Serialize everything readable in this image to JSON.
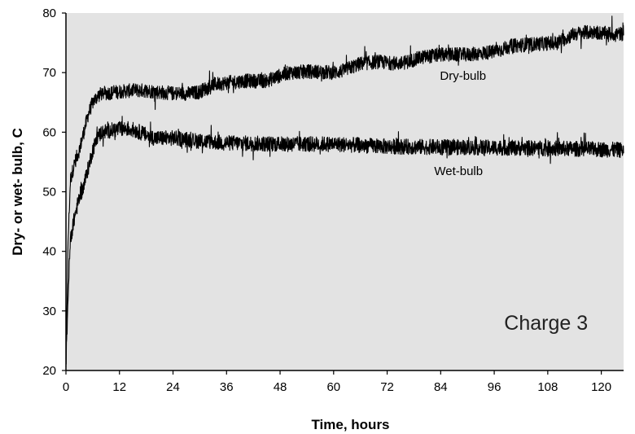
{
  "chart_data": {
    "type": "line",
    "title": "",
    "xlabel": "Time, hours",
    "ylabel": "Dry- or wet- bulb, C",
    "xlim": [
      0,
      125
    ],
    "ylim": [
      20,
      80
    ],
    "x_ticks": [
      0,
      12,
      24,
      36,
      48,
      60,
      72,
      84,
      96,
      108,
      120
    ],
    "y_ticks": [
      20,
      30,
      40,
      50,
      60,
      70,
      80
    ],
    "grid": false,
    "legend": "none",
    "background": "#e3e3e3",
    "line_color": "#000000",
    "annotation": "Charge 3",
    "series": [
      {
        "name": "Dry-bulb",
        "noise": 1.2,
        "x": [
          0,
          0.5,
          1,
          2,
          3,
          4,
          5,
          6,
          7,
          8,
          10,
          12,
          15,
          18,
          20,
          24,
          28,
          30,
          33,
          36,
          40,
          45,
          48,
          50,
          55,
          60,
          62,
          66,
          70,
          75,
          80,
          84,
          90,
          96,
          100,
          105,
          110,
          114,
          118,
          122,
          125
        ],
        "y": [
          21,
          42,
          52,
          55,
          57,
          60,
          63,
          65,
          66,
          66.5,
          66.6,
          66.8,
          67,
          67,
          66.8,
          66.5,
          66.5,
          66.8,
          68,
          68.3,
          68.6,
          68.6,
          69.5,
          70,
          70.2,
          70,
          70.3,
          71.5,
          71.8,
          71.5,
          72.6,
          73,
          73,
          73.5,
          74.5,
          74.8,
          75,
          76.5,
          76.8,
          76.5,
          76.5
        ]
      },
      {
        "name": "Wet-bulb",
        "noise": 1.3,
        "x": [
          0,
          0.5,
          1,
          2,
          3,
          4,
          5,
          6,
          7,
          8,
          10,
          12,
          14,
          16,
          18,
          20,
          24,
          30,
          36,
          48,
          60,
          72,
          84,
          96,
          108,
          120,
          125
        ],
        "y": [
          21,
          33,
          42,
          46,
          49,
          51,
          54,
          57,
          59,
          60,
          60.3,
          60.5,
          60.6,
          60.2,
          59.5,
          59,
          59,
          58.5,
          58.2,
          58,
          58,
          57.6,
          57.5,
          57.4,
          57.3,
          57.1,
          57
        ]
      }
    ],
    "series_labels": [
      {
        "text": "Dry-bulb",
        "x": 89,
        "y": 68.8
      },
      {
        "text": "Wet-bulb",
        "x": 88,
        "y": 52.8
      }
    ],
    "annotation_pos": {
      "x": 117,
      "y": 26.8
    }
  }
}
